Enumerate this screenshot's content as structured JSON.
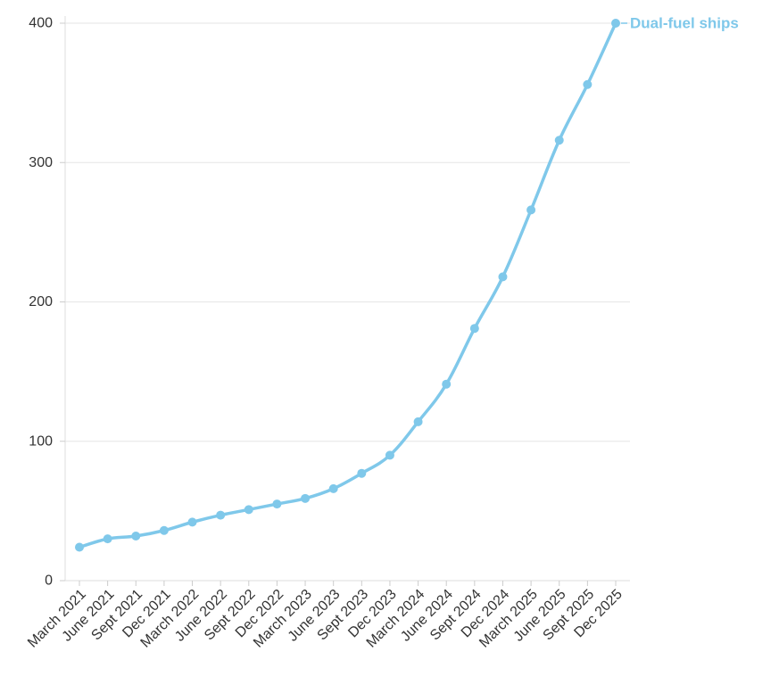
{
  "chart_data": {
    "type": "line",
    "title": "",
    "xlabel": "",
    "ylabel": "",
    "ylim": [
      0,
      400
    ],
    "yticks": [
      0,
      100,
      200,
      300,
      400
    ],
    "grid": true,
    "legend": "inline-end-label",
    "categories": [
      "March 2021",
      "June 2021",
      "Sept 2021",
      "Dec 2021",
      "March 2022",
      "June 2022",
      "Sept 2022",
      "Dec 2022",
      "March 2023",
      "June 2023",
      "Sept 2023",
      "Dec 2023",
      "March 2024",
      "June 2024",
      "Sept 2024",
      "Dec 2024",
      "March 2025",
      "June 2025",
      "Sept 2025",
      "Dec 2025"
    ],
    "series": [
      {
        "name": "Dual-fuel ships",
        "color": "#7fc8ea",
        "values": [
          24,
          30,
          32,
          36,
          42,
          47,
          51,
          55,
          59,
          66,
          77,
          90,
          114,
          141,
          181,
          218,
          266,
          316,
          356,
          400
        ]
      }
    ]
  }
}
